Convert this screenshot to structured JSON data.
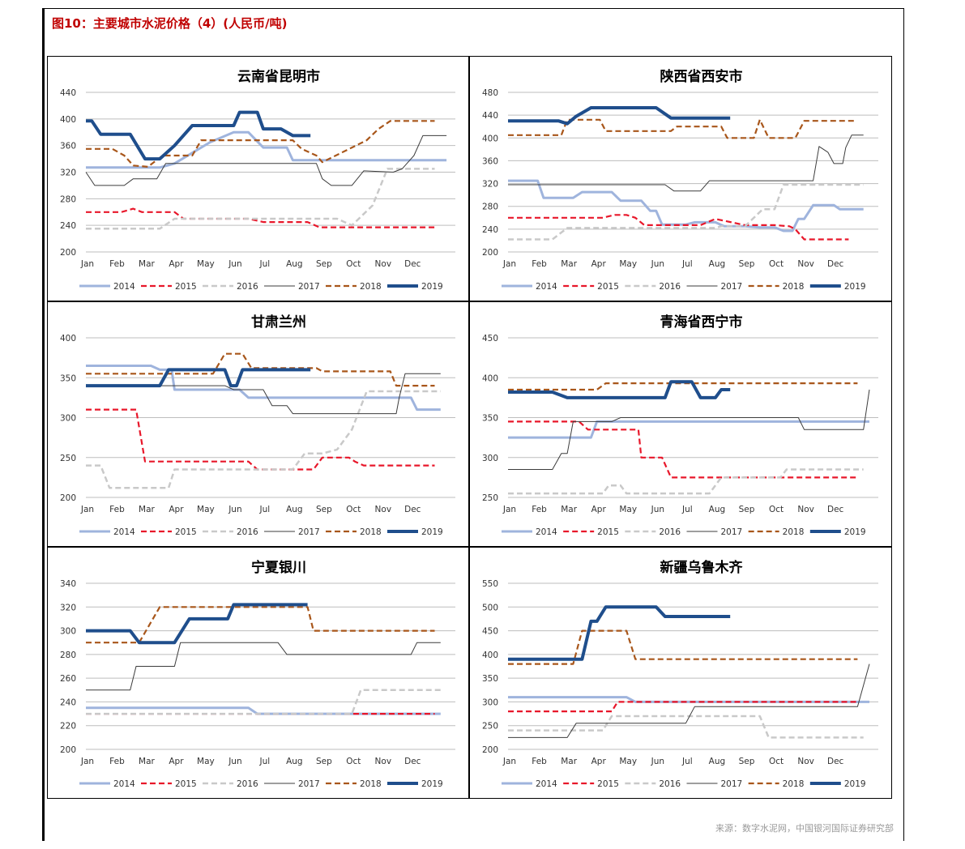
{
  "figure": {
    "title": "图10：主要城市水泥价格（4）(人民币/吨)",
    "source": "来源：数字水泥网，中国银河国际证券研究部"
  },
  "legend": [
    {
      "name": "2014",
      "color": "#9fb4dd",
      "dash": "solid",
      "width": 3
    },
    {
      "name": "2015",
      "color": "#e8172a",
      "dash": "dashed",
      "width": 2.2
    },
    {
      "name": "2016",
      "color": "#c9c9c9",
      "dash": "dashed",
      "width": 2.5
    },
    {
      "name": "2017",
      "color": "#3c3c3c",
      "dash": "solid",
      "width": 1
    },
    {
      "name": "2018",
      "color": "#a8561a",
      "dash": "dashed",
      "width": 2.2
    },
    {
      "name": "2019",
      "color": "#1f4e8c",
      "dash": "solid",
      "width": 4
    }
  ],
  "months": [
    "Jan",
    "Feb",
    "Mar",
    "Apr",
    "May",
    "Jun",
    "Jul",
    "Aug",
    "Sep",
    "Oct",
    "Nov",
    "Dec"
  ],
  "chart_data": [
    {
      "type": "line",
      "title": "云南省昆明市",
      "ylim": [
        200,
        440
      ],
      "yticks": [
        200,
        240,
        280,
        320,
        360,
        400,
        440
      ],
      "series": [
        {
          "name": "2014",
          "x": [
            0,
            2.5,
            3.0,
            4.2,
            5.0,
            5.5,
            6.0,
            6.8,
            7.0,
            8.0,
            12.2
          ],
          "values": [
            327,
            327,
            333,
            365,
            380,
            380,
            357,
            357,
            338,
            338,
            338
          ]
        },
        {
          "name": "2015",
          "x": [
            0,
            1.2,
            1.6,
            1.9,
            3.0,
            3.3,
            5.5,
            6.0,
            7.5,
            7.9,
            11.8
          ],
          "values": [
            260,
            260,
            265,
            260,
            260,
            250,
            250,
            245,
            245,
            237,
            237
          ]
        },
        {
          "name": "2016",
          "x": [
            0,
            2.5,
            3.0,
            8.5,
            9.0,
            9.7,
            10.2,
            11.0,
            11.8
          ],
          "values": [
            235,
            235,
            250,
            250,
            240,
            270,
            325,
            325,
            325
          ]
        },
        {
          "name": "2017",
          "x": [
            0,
            0.3,
            1.3,
            1.6,
            2.4,
            2.7,
            6.8,
            7.8,
            8.0,
            8.3,
            9.0,
            9.4,
            10.4,
            10.7,
            11.1,
            11.4,
            12.2
          ],
          "values": [
            320,
            300,
            300,
            310,
            310,
            333,
            333,
            333,
            310,
            300,
            300,
            322,
            320,
            325,
            345,
            375,
            375
          ]
        },
        {
          "name": "2018",
          "x": [
            0,
            0.9,
            1.3,
            1.6,
            2.1,
            2.6,
            3.6,
            3.9,
            7.0,
            7.3,
            7.8,
            8.0,
            9.5,
            9.9,
            10.3,
            11.8
          ],
          "values": [
            355,
            355,
            345,
            330,
            328,
            345,
            345,
            368,
            368,
            355,
            345,
            335,
            368,
            385,
            397,
            397
          ]
        },
        {
          "name": "2019",
          "x": [
            0,
            0.2,
            0.5,
            1.5,
            2.0,
            2.5,
            3.0,
            3.6,
            3.9,
            5.0,
            5.2,
            5.8,
            6.0,
            6.6,
            7.0,
            7.6
          ],
          "values": [
            397,
            397,
            377,
            377,
            340,
            340,
            360,
            390,
            390,
            390,
            410,
            410,
            385,
            385,
            375,
            375
          ]
        }
      ]
    },
    {
      "type": "line",
      "title": "陕西省西安市",
      "ylim": [
        200,
        480
      ],
      "yticks": [
        200,
        240,
        280,
        320,
        360,
        400,
        440,
        480
      ],
      "series": [
        {
          "name": "2014",
          "x": [
            0,
            1.0,
            1.2,
            2.2,
            2.5,
            3.5,
            3.8,
            4.5,
            4.8,
            5.0,
            5.2,
            6.0,
            6.3,
            7.0,
            7.3,
            8.0,
            8.5,
            9.0,
            9.3,
            9.6,
            9.8,
            10.0,
            10.3,
            11.0,
            11.2,
            12.0
          ],
          "values": [
            325,
            325,
            295,
            295,
            305,
            305,
            290,
            290,
            272,
            272,
            248,
            248,
            252,
            252,
            245,
            245,
            243,
            243,
            237,
            237,
            258,
            258,
            282,
            282,
            275,
            275
          ]
        },
        {
          "name": "2015",
          "x": [
            0,
            3.2,
            3.6,
            4.0,
            4.3,
            4.6,
            6.5,
            7.0,
            8.0,
            9.0,
            9.5,
            9.7,
            10.0,
            11.5
          ],
          "values": [
            260,
            260,
            265,
            265,
            260,
            247,
            247,
            258,
            247,
            247,
            245,
            240,
            222,
            222
          ]
        },
        {
          "name": "2016",
          "x": [
            0,
            1.5,
            2.0,
            7.0,
            7.2,
            8.0,
            8.6,
            9.0,
            9.3,
            10.0,
            12.0
          ],
          "values": [
            222,
            222,
            242,
            242,
            245,
            245,
            275,
            275,
            318,
            318,
            318
          ]
        },
        {
          "name": "2017",
          "x": [
            0,
            5.3,
            5.6,
            6.5,
            6.8,
            10.3,
            10.5,
            10.8,
            11.0,
            11.3,
            11.4,
            11.6,
            12.0
          ],
          "values": [
            318,
            318,
            307,
            307,
            325,
            325,
            385,
            375,
            355,
            355,
            383,
            405,
            405
          ]
        },
        {
          "name": "2018",
          "x": [
            0,
            1.8,
            2.0,
            3.1,
            3.3,
            5.5,
            5.7,
            7.2,
            7.4,
            8.3,
            8.5,
            8.8,
            9.0,
            9.7,
            10.0,
            11.7
          ],
          "values": [
            405,
            405,
            432,
            432,
            412,
            412,
            420,
            420,
            400,
            400,
            432,
            400,
            400,
            400,
            430,
            430
          ]
        },
        {
          "name": "2019",
          "x": [
            0,
            1.7,
            2.0,
            2.3,
            2.8,
            5.0,
            5.5,
            7.5
          ],
          "values": [
            430,
            430,
            425,
            438,
            453,
            453,
            435,
            435
          ]
        }
      ]
    },
    {
      "type": "line",
      "title": "甘肃兰州",
      "ylim": [
        200,
        400
      ],
      "yticks": [
        200,
        250,
        300,
        350,
        400
      ],
      "series": [
        {
          "name": "2014",
          "x": [
            0,
            2.2,
            2.5,
            2.9,
            3.0,
            5.2,
            5.5,
            11.0,
            11.2,
            12.0
          ],
          "values": [
            365,
            365,
            360,
            360,
            335,
            335,
            325,
            325,
            310,
            310
          ]
        },
        {
          "name": "2015",
          "x": [
            0,
            1.7,
            2.0,
            5.5,
            5.8,
            7.7,
            8.0,
            8.9,
            9.1,
            9.4,
            9.7,
            11.8
          ],
          "values": [
            310,
            310,
            245,
            245,
            235,
            235,
            250,
            250,
            245,
            240,
            240,
            240
          ]
        },
        {
          "name": "2016",
          "x": [
            0,
            0.5,
            0.8,
            2.8,
            3.0,
            7.0,
            7.4,
            8.0,
            8.5,
            9.0,
            9.5,
            10.0,
            12.0
          ],
          "values": [
            240,
            240,
            212,
            212,
            235,
            235,
            255,
            255,
            260,
            285,
            333,
            333,
            333
          ]
        },
        {
          "name": "2017",
          "x": [
            0,
            4.7,
            5.0,
            6.0,
            6.3,
            6.8,
            7.0,
            10.5,
            10.6,
            10.8,
            12.0
          ],
          "values": [
            340,
            340,
            335,
            335,
            315,
            315,
            305,
            305,
            325,
            355,
            355
          ]
        },
        {
          "name": "2018",
          "x": [
            0,
            4.3,
            4.7,
            5.3,
            5.6,
            7.8,
            8.0,
            10.3,
            10.5,
            11.8
          ],
          "values": [
            355,
            355,
            380,
            380,
            362,
            362,
            358,
            358,
            340,
            340
          ]
        },
        {
          "name": "2019",
          "x": [
            0,
            2.5,
            2.8,
            4.7,
            4.9,
            5.1,
            5.3,
            7.6
          ],
          "values": [
            340,
            340,
            360,
            360,
            340,
            340,
            360,
            360
          ]
        }
      ]
    },
    {
      "type": "line",
      "title": "青海省西宁市",
      "ylim": [
        250,
        450
      ],
      "yticks": [
        250,
        300,
        350,
        400,
        450
      ],
      "series": [
        {
          "name": "2014",
          "x": [
            0,
            2.8,
            3.0,
            12.2
          ],
          "values": [
            325,
            325,
            345,
            345
          ]
        },
        {
          "name": "2015",
          "x": [
            0,
            2.4,
            2.7,
            4.4,
            4.5,
            5.2,
            5.5,
            11.8
          ],
          "values": [
            345,
            345,
            335,
            335,
            300,
            300,
            275,
            275
          ]
        },
        {
          "name": "2016",
          "x": [
            0,
            3.2,
            3.4,
            3.8,
            4.0,
            6.8,
            7.2,
            9.2,
            9.4,
            12.0
          ],
          "values": [
            255,
            255,
            265,
            265,
            255,
            255,
            275,
            275,
            285,
            285
          ]
        },
        {
          "name": "2017",
          "x": [
            0,
            1.5,
            1.8,
            2.0,
            2.2,
            2.5,
            3.5,
            3.8,
            9.8,
            10.0,
            12.0,
            12.2
          ],
          "values": [
            285,
            285,
            305,
            305,
            345,
            345,
            345,
            350,
            350,
            335,
            335,
            385
          ]
        },
        {
          "name": "2018",
          "x": [
            0,
            3.0,
            3.3,
            11.8
          ],
          "values": [
            385,
            385,
            393,
            393
          ]
        },
        {
          "name": "2019",
          "x": [
            0,
            1.5,
            2.0,
            5.3,
            5.5,
            6.2,
            6.5,
            7.0,
            7.2,
            7.5
          ],
          "values": [
            382,
            382,
            375,
            375,
            395,
            395,
            375,
            375,
            385,
            385
          ]
        }
      ]
    },
    {
      "type": "line",
      "title": "宁夏银川",
      "ylim": [
        200,
        340
      ],
      "yticks": [
        200,
        220,
        240,
        260,
        280,
        300,
        320,
        340
      ],
      "series": [
        {
          "name": "2014",
          "x": [
            0,
            5.5,
            5.8,
            12.0
          ],
          "values": [
            235,
            235,
            230,
            230
          ]
        },
        {
          "name": "2015",
          "x": [
            0,
            11.8
          ],
          "values": [
            230,
            230
          ]
        },
        {
          "name": "2016",
          "x": [
            0,
            9.0,
            9.3,
            12.0
          ],
          "values": [
            230,
            230,
            250,
            250
          ]
        },
        {
          "name": "2017",
          "x": [
            0,
            1.5,
            1.7,
            3.0,
            3.2,
            6.5,
            6.8,
            11.0,
            11.2,
            12.0
          ],
          "values": [
            250,
            250,
            270,
            270,
            290,
            290,
            280,
            280,
            290,
            290
          ]
        },
        {
          "name": "2018",
          "x": [
            0,
            1.5,
            1.8,
            2.5,
            2.7,
            7.5,
            7.7,
            11.8
          ],
          "values": [
            290,
            290,
            290,
            320,
            320,
            320,
            300,
            300
          ]
        },
        {
          "name": "2019",
          "x": [
            0,
            1.5,
            1.8,
            3.0,
            3.5,
            4.8,
            5.0,
            7.5
          ],
          "values": [
            300,
            300,
            290,
            290,
            310,
            310,
            322,
            322
          ]
        }
      ]
    },
    {
      "type": "line",
      "title": "新疆乌鲁木齐",
      "ylim": [
        200,
        550
      ],
      "yticks": [
        200,
        250,
        300,
        350,
        400,
        450,
        500,
        550
      ],
      "series": [
        {
          "name": "2014",
          "x": [
            0,
            4.0,
            4.3,
            12.2
          ],
          "values": [
            310,
            310,
            300,
            300
          ]
        },
        {
          "name": "2015",
          "x": [
            0,
            3.5,
            3.7,
            11.8
          ],
          "values": [
            280,
            280,
            300,
            300
          ]
        },
        {
          "name": "2016",
          "x": [
            0,
            3.2,
            3.5,
            8.5,
            8.8,
            12.0
          ],
          "values": [
            240,
            240,
            270,
            270,
            225,
            225
          ]
        },
        {
          "name": "2017",
          "x": [
            0,
            2.0,
            2.3,
            6.0,
            6.3,
            11.8,
            12.2
          ],
          "values": [
            225,
            225,
            255,
            255,
            290,
            290,
            380
          ]
        },
        {
          "name": "2018",
          "x": [
            0,
            2.2,
            2.5,
            4.0,
            4.3,
            11.8
          ],
          "values": [
            380,
            380,
            450,
            450,
            390,
            390
          ]
        },
        {
          "name": "2019",
          "x": [
            0,
            2.5,
            2.8,
            3.0,
            3.3,
            5.0,
            5.3,
            7.5
          ],
          "values": [
            390,
            390,
            470,
            470,
            500,
            500,
            480,
            480
          ]
        }
      ]
    }
  ]
}
